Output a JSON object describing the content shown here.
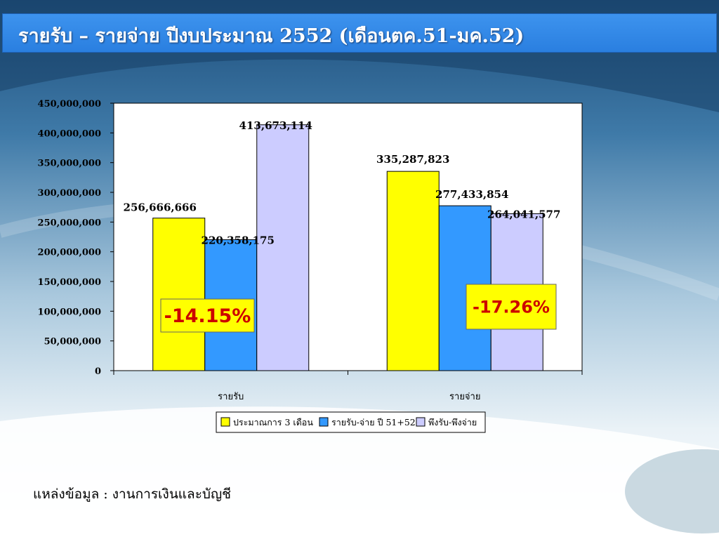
{
  "slide": {
    "title": "รายรับ – รายจ่าย ปีงบประมาณ 2552 (เดือนตค.51-มค.52)",
    "source": "แหล่งข้อมูล : งานการเงินและบัญชี"
  },
  "chart_data": {
    "type": "bar",
    "categories": [
      "รายรับ",
      "รายจ่าย"
    ],
    "series": [
      {
        "name": "ประมาณการ 3 เดือน",
        "values": [
          256666666,
          335287823
        ],
        "color": "#ffff00"
      },
      {
        "name": "รายรับ-จ่าย ปี 51+52",
        "values": [
          220358175,
          277433854
        ],
        "color": "#3399ff"
      },
      {
        "name": "พึงรับ-พึงจ่าย",
        "values": [
          413673114,
          264041577
        ],
        "color": "#ccccff"
      }
    ],
    "value_labels": [
      [
        "256,666,666",
        "335,287,823"
      ],
      [
        "220,358,175",
        "277,433,854"
      ],
      [
        "413,673,114",
        "264,041,577"
      ]
    ],
    "yticks": [
      "0",
      "50,000,000",
      "100,000,000",
      "150,000,000",
      "200,000,000",
      "250,000,000",
      "300,000,000",
      "350,000,000",
      "400,000,000",
      "450,000,000"
    ],
    "ylim": [
      0,
      450000000
    ],
    "legend_position": "bottom",
    "annotations": [
      {
        "text": "-14.15%",
        "category": "รายรับ",
        "bg": "#ffff00",
        "color": "#cc0000"
      },
      {
        "text": "-17.26%",
        "category": "รายจ่าย",
        "bg": "#ffff00",
        "color": "#cc0000"
      }
    ]
  }
}
